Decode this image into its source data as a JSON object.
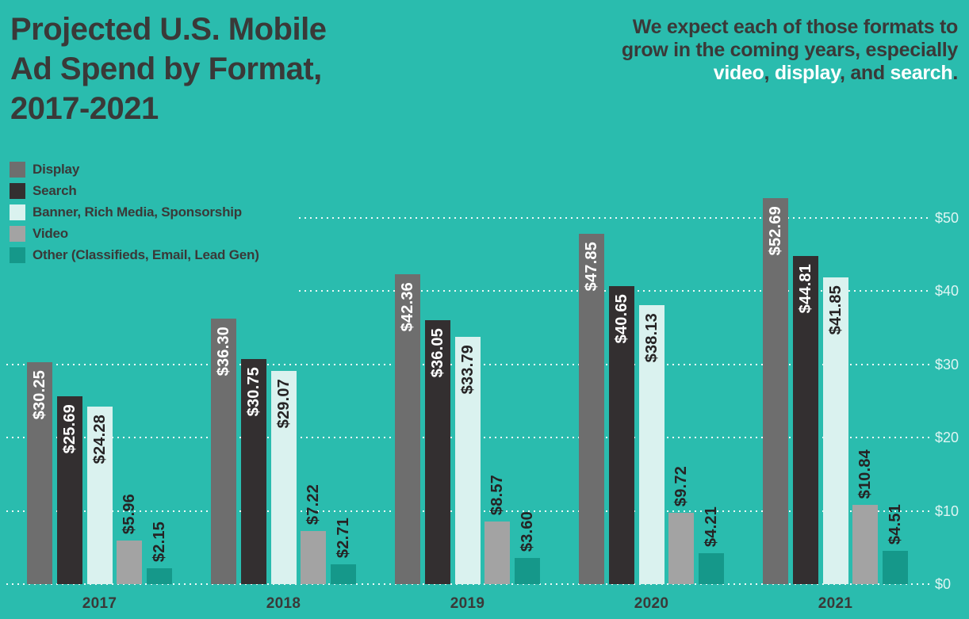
{
  "page": {
    "background_color": "#2abcae",
    "dark_text_color": "#3a3938",
    "bar_label_dark_color": "#262324",
    "axis_label_color": "rgba(255,255,255,0.85)",
    "highlight_color": "#ffffff"
  },
  "header": {
    "title_lines": [
      "Projected U.S. Mobile",
      "Ad Spend by Format,",
      "2017-2021"
    ],
    "subtitle_lines": [
      [
        {
          "text": "We expect each of those formats to",
          "highlight": false
        }
      ],
      [
        {
          "text": "grow in the coming years, especially",
          "highlight": false
        }
      ],
      [
        {
          "text": "video",
          "highlight": true
        },
        {
          "text": ", ",
          "highlight": false
        },
        {
          "text": "display",
          "highlight": true
        },
        {
          "text": ", and ",
          "highlight": false
        },
        {
          "text": "search",
          "highlight": true
        },
        {
          "text": ".",
          "highlight": false
        }
      ]
    ]
  },
  "chart_data": {
    "type": "bar",
    "title": "Projected U.S. Mobile Ad Spend by Format, 2017-2021",
    "categories": [
      "2017",
      "2018",
      "2019",
      "2020",
      "2021"
    ],
    "series": [
      {
        "name": "Display",
        "color": "#6e6e6e",
        "label_color": "#ffffff",
        "label_position": "inside",
        "values": [
          30.25,
          36.3,
          42.36,
          47.85,
          52.69
        ],
        "labels": [
          "$30.25",
          "$36.30",
          "$42.36",
          "$47.85",
          "$52.69"
        ]
      },
      {
        "name": "Search",
        "color": "#332f30",
        "label_color": "#ffffff",
        "label_position": "inside",
        "values": [
          25.69,
          30.75,
          36.05,
          40.65,
          44.81
        ],
        "labels": [
          "$25.69",
          "$30.75",
          "$36.05",
          "$40.65",
          "$44.81"
        ]
      },
      {
        "name": "Banner, Rich Media, Sponsorship",
        "color": "#daf2ef",
        "label_color": "#262324",
        "label_position": "inside",
        "values": [
          24.28,
          29.07,
          33.79,
          38.13,
          41.85
        ],
        "labels": [
          "$24.28",
          "$29.07",
          "$33.79",
          "$38.13",
          "$41.85"
        ]
      },
      {
        "name": "Video",
        "color": "#a3a3a3",
        "label_color": "#262324",
        "label_position": "outside",
        "values": [
          5.96,
          7.22,
          8.57,
          9.72,
          10.84
        ],
        "labels": [
          "$5.96",
          "$7.22",
          "$8.57",
          "$9.72",
          "$10.84"
        ]
      },
      {
        "name": "Other (Classifieds, Email, Lead Gen)",
        "color": "#15988a",
        "label_color": "#262324",
        "label_position": "outside",
        "values": [
          2.15,
          2.71,
          3.6,
          4.21,
          4.51
        ],
        "labels": [
          "$2.15",
          "$2.71",
          "$3.60",
          "$4.21",
          "$4.51"
        ]
      }
    ],
    "yticks": [
      {
        "value": 0,
        "label": "$0"
      },
      {
        "value": 10,
        "label": "$10"
      },
      {
        "value": 20,
        "label": "$20"
      },
      {
        "value": 30,
        "label": "$30"
      },
      {
        "value": 40,
        "label": "$40"
      },
      {
        "value": 50,
        "label": "$50"
      }
    ],
    "ylim": [
      0,
      50
    ],
    "value_prefix": "$",
    "grid": "dotted-white-horizontal",
    "legend_position": "top-left",
    "y_axis_side": "right"
  }
}
